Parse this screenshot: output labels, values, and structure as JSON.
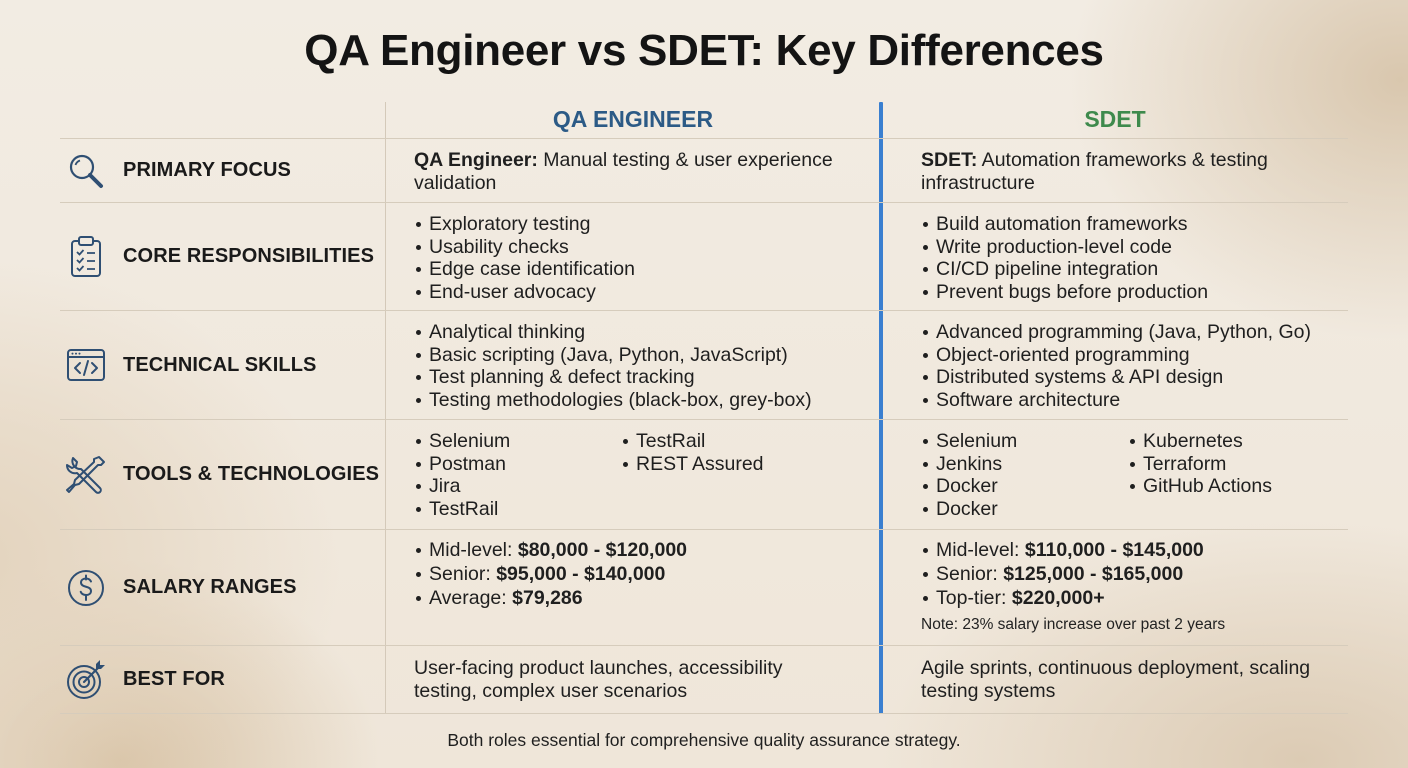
{
  "title": "QA Engineer vs SDET: Key Differences",
  "columns": {
    "qa": "QA ENGINEER",
    "sdet": "SDET"
  },
  "colors": {
    "qa_header": "#2c5a86",
    "sdet_header": "#3e8a4c",
    "divider": "#3a7fd0",
    "icon": "#2f4f73"
  },
  "rows": {
    "primary_focus": {
      "label": "PRIMARY FOCUS",
      "icon": "magnifier-icon",
      "qa": {
        "lead": "QA Engineer:",
        "text": " Manual testing & user experience validation"
      },
      "sdet": {
        "lead": "SDET:",
        "text": " Automation frameworks & testing infrastructure"
      }
    },
    "core": {
      "label": "CORE RESPONSIBILITIES",
      "icon": "clipboard-checklist-icon",
      "qa": [
        "Exploratory testing",
        "Usability checks",
        "Edge case identification",
        "End-user advocacy"
      ],
      "sdet": [
        "Build automation frameworks",
        "Write production-level code",
        "CI/CD pipeline integration",
        "Prevent bugs before production"
      ]
    },
    "skills": {
      "label": "TECHNICAL SKILLS",
      "icon": "code-window-icon",
      "qa": [
        "Analytical thinking",
        "Basic scripting (Java, Python, JavaScript)",
        "Test planning & defect tracking",
        "Testing methodologies (black-box, grey-box)"
      ],
      "sdet": [
        "Advanced programming (Java, Python, Go)",
        "Object-oriented programming",
        "Distributed systems & API design",
        "Software architecture"
      ]
    },
    "tools": {
      "label": "TOOLS & TECHNOLOGIES",
      "icon": "wrench-screwdriver-icon",
      "qa_left": [
        "Selenium",
        "Postman",
        "Jira",
        "TestRail"
      ],
      "qa_right": [
        "TestRail",
        "REST Assured"
      ],
      "sdet_left": [
        "Selenium",
        "Jenkins",
        "Docker",
        "Docker"
      ],
      "sdet_right": [
        "Kubernetes",
        "Terraform",
        "GitHub Actions"
      ]
    },
    "salary": {
      "label": "SALARY RANGES",
      "icon": "dollar-circle-icon",
      "qa": [
        {
          "k": "Mid-level: ",
          "v": "$80,000 - $120,000"
        },
        {
          "k": "Senior: ",
          "v": "$95,000 - $140,000"
        },
        {
          "k": "Average: ",
          "v": "$79,286"
        }
      ],
      "sdet": [
        {
          "k": "Mid-level: ",
          "v": "$110,000 - $145,000"
        },
        {
          "k": "Senior: ",
          "v": "$125,000 - $165,000"
        },
        {
          "k": "Top-tier: ",
          "v": "$220,000+"
        }
      ],
      "sdet_note": "Note: 23% salary increase over past 2 years"
    },
    "best_for": {
      "label": "BEST FOR",
      "icon": "target-icon",
      "qa": "User-facing product launches, accessibility testing, complex user scenarios",
      "sdet": "Agile sprints, continuous deployment, scaling testing systems"
    }
  },
  "footer": "Both roles essential for comprehensive quality assurance strategy."
}
